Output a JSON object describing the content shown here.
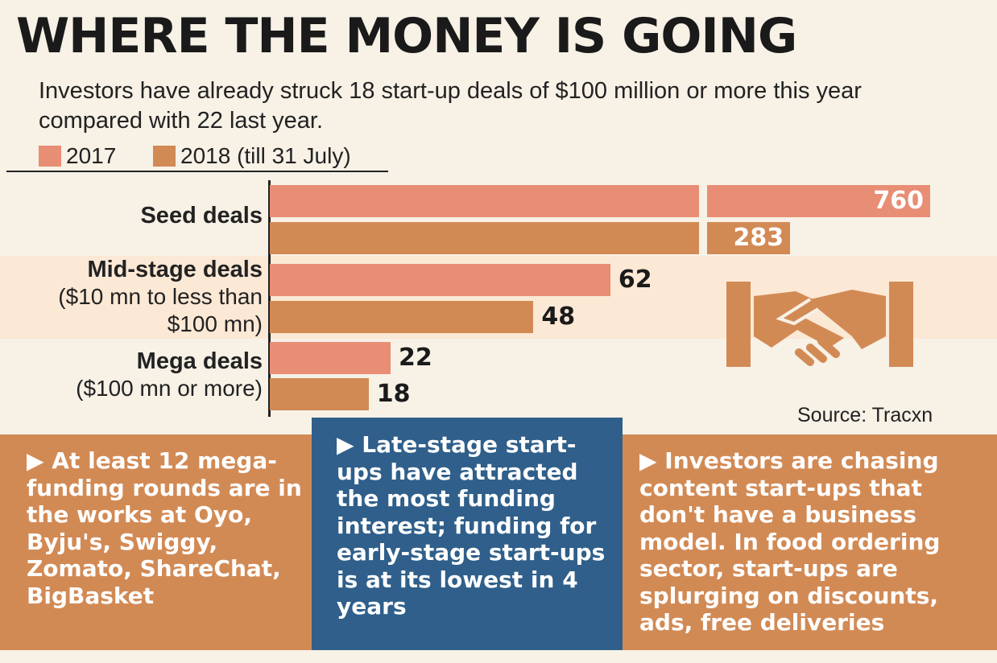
{
  "title": "WHERE THE MONEY IS GOING",
  "subtitle": "Investors have already struck 18 start-up deals of $100 million or more this year compared with 22 last year.",
  "legend": {
    "items": [
      {
        "label": "2017",
        "color": "#e88e74"
      },
      {
        "label": "2018 (till 31 July)",
        "color": "#d28a55"
      }
    ]
  },
  "source": "Source: Tracxn",
  "chart_data": {
    "type": "bar",
    "orientation": "horizontal",
    "categories": [
      {
        "main": "Seed deals",
        "sub": ""
      },
      {
        "main": "Mid-stage deals",
        "sub": "($10 mn to less than $100 mn)"
      },
      {
        "main": "Mega deals",
        "sub": "($100 mn or more)"
      }
    ],
    "series": [
      {
        "name": "2017",
        "values": [
          760,
          62,
          22
        ]
      },
      {
        "name": "2018 (till 31 July)",
        "values": [
          283,
          48,
          18
        ]
      }
    ],
    "axis_break": true,
    "grid": false,
    "legend_position": "top-left"
  },
  "notes": {
    "left": {
      "prefix": "At least ",
      "highlight": "12",
      "text": " mega-funding rounds are in the works at Oyo, Byju's, Swiggy, Zomato, ShareChat, BigBasket"
    },
    "middle": {
      "prefix": "Late-stage start-ups have attracted the most funding interest; funding for early-stage start-ups is at its ",
      "highlight": "lowest",
      "suffix": " in 4 years"
    },
    "right": {
      "text": "Investors are chasing content start-ups that don't have a business model. In food ordering sector, start-ups are splurging on discounts, ads, free deliveries"
    }
  },
  "marker": "▶"
}
